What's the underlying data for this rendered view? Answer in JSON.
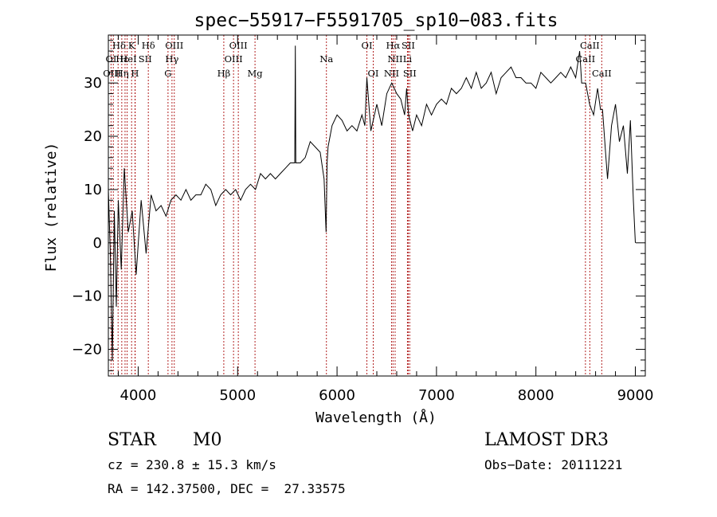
{
  "chart_data": {
    "type": "line",
    "title": "spec−55917−F5591705_sp10−083.fits",
    "xlabel": "Wavelength (Å)",
    "ylabel": "Flux (relative)",
    "xlim": [
      3700,
      9100
    ],
    "ylim": [
      -25,
      39
    ],
    "xticks": [
      4000,
      5000,
      6000,
      7000,
      8000,
      9000
    ],
    "xtick_labels": [
      "4000",
      "5000",
      "6000",
      "7000",
      "8000",
      "9000"
    ],
    "yticks": [
      -20,
      -10,
      0,
      10,
      20,
      30
    ],
    "ytick_labels": [
      "−20",
      "−10",
      "0",
      "10",
      "20",
      "30"
    ],
    "grid": false,
    "series": [
      {
        "name": "flux",
        "color": "#000000",
        "x": [
          3700,
          3720,
          3740,
          3760,
          3780,
          3800,
          3830,
          3860,
          3900,
          3940,
          3980,
          4030,
          4080,
          4130,
          4180,
          4230,
          4280,
          4330,
          4380,
          4430,
          4480,
          4530,
          4580,
          4630,
          4680,
          4730,
          4780,
          4830,
          4880,
          4930,
          4980,
          5030,
          5080,
          5130,
          5180,
          5230,
          5280,
          5330,
          5380,
          5430,
          5480,
          5530,
          5575,
          5580,
          5585,
          5630,
          5680,
          5730,
          5780,
          5830,
          5870,
          5890,
          5900,
          5910,
          5950,
          6000,
          6050,
          6100,
          6150,
          6200,
          6250,
          6280,
          6300,
          6340,
          6400,
          6450,
          6500,
          6550,
          6600,
          6640,
          6680,
          6700,
          6720,
          6760,
          6800,
          6850,
          6900,
          6950,
          7000,
          7050,
          7100,
          7150,
          7200,
          7250,
          7300,
          7350,
          7400,
          7450,
          7500,
          7550,
          7600,
          7650,
          7700,
          7750,
          7800,
          7850,
          7900,
          7950,
          8000,
          8050,
          8100,
          8150,
          8200,
          8250,
          8300,
          8350,
          8400,
          8440,
          8450,
          8460,
          8500,
          8540,
          8580,
          8620,
          8650,
          8670,
          8700,
          8720,
          8760,
          8800,
          8840,
          8880,
          8920,
          8950,
          8980,
          9000
        ],
        "values": [
          10,
          -2,
          -22,
          6,
          -12,
          8,
          -5,
          14,
          2,
          6,
          -6,
          8,
          -2,
          9,
          6,
          7,
          5,
          8,
          9,
          8,
          10,
          8,
          9,
          9,
          11,
          10,
          7,
          9,
          10,
          9,
          10,
          8,
          10,
          11,
          10,
          13,
          12,
          13,
          12,
          13,
          14,
          15,
          15,
          37,
          15,
          15,
          16,
          19,
          18,
          17,
          12,
          2,
          15,
          18,
          22,
          24,
          23,
          21,
          22,
          21,
          24,
          22,
          31,
          21,
          26,
          22,
          28,
          30,
          28,
          27,
          24,
          29,
          24,
          21,
          24,
          22,
          26,
          24,
          26,
          27,
          26,
          29,
          28,
          29,
          31,
          29,
          32,
          29,
          30,
          32,
          28,
          31,
          32,
          33,
          31,
          31,
          30,
          30,
          29,
          32,
          31,
          30,
          31,
          32,
          31,
          33,
          31,
          36,
          33,
          30,
          30,
          26,
          24,
          29,
          25,
          25,
          17,
          12,
          22,
          26,
          19,
          22,
          13,
          23,
          8,
          0
        ]
      }
    ],
    "annotations": {
      "lines": [
        3727,
        3750,
        3798,
        3835,
        3868,
        3889,
        3934,
        3968,
        3970,
        4102,
        4300,
        4340,
        4363,
        4861,
        4959,
        5007,
        5175,
        5893,
        6300,
        6364,
        6548,
        6563,
        6584,
        6708,
        6716,
        6731,
        8498,
        8542,
        8662
      ],
      "labels": [
        {
          "text": "Hδ",
          "x": 3808,
          "row": 1
        },
        {
          "text": "K",
          "x": 3934,
          "row": 1
        },
        {
          "text": "Hδ",
          "x": 4102,
          "row": 1
        },
        {
          "text": "OIII",
          "x": 4363,
          "row": 1
        },
        {
          "text": "OIII",
          "x": 5007,
          "row": 1
        },
        {
          "text": "OI",
          "x": 6300,
          "row": 1
        },
        {
          "text": "Hα",
          "x": 6563,
          "row": 1
        },
        {
          "text": "SII",
          "x": 6716,
          "row": 1
        },
        {
          "text": "CaII",
          "x": 8542,
          "row": 1
        },
        {
          "text": "OI",
          "x": 3728,
          "row": 2
        },
        {
          "text": "Hε",
          "x": 3838,
          "row": 2
        },
        {
          "text": "HeI",
          "x": 3900,
          "row": 2
        },
        {
          "text": "SII",
          "x": 4070,
          "row": 2
        },
        {
          "text": "Hγ",
          "x": 4340,
          "row": 2
        },
        {
          "text": "OIII",
          "x": 4959,
          "row": 2
        },
        {
          "text": "Na",
          "x": 5893,
          "row": 2
        },
        {
          "text": "NII",
          "x": 6584,
          "row": 2
        },
        {
          "text": "Li",
          "x": 6708,
          "row": 2
        },
        {
          "text": "CaII",
          "x": 8498,
          "row": 2
        },
        {
          "text": "OIII",
          "x": 3738,
          "row": 3
        },
        {
          "text": "Hη",
          "x": 3838,
          "row": 3
        },
        {
          "text": "H",
          "x": 3968,
          "row": 3
        },
        {
          "text": "G",
          "x": 4300,
          "row": 3
        },
        {
          "text": "Hβ",
          "x": 4861,
          "row": 3
        },
        {
          "text": "Mg",
          "x": 5175,
          "row": 3
        },
        {
          "text": "OI",
          "x": 6364,
          "row": 3
        },
        {
          "text": "NII",
          "x": 6548,
          "row": 3
        },
        {
          "text": "SII",
          "x": 6731,
          "row": 3
        },
        {
          "text": "CaII",
          "x": 8662,
          "row": 3
        }
      ]
    },
    "colors": {
      "spectrum": "#000000",
      "line_marker": "#b22222",
      "axes": "#000000"
    }
  },
  "info": {
    "object_class": "STAR",
    "subclass": "M0",
    "survey": "LAMOST DR3",
    "redshift": "cz = 230.8 ± 15.3 km/s",
    "obs_date": "Obs−Date: 20111221",
    "coords": "RA = 142.37500, DEC =  27.33575"
  }
}
